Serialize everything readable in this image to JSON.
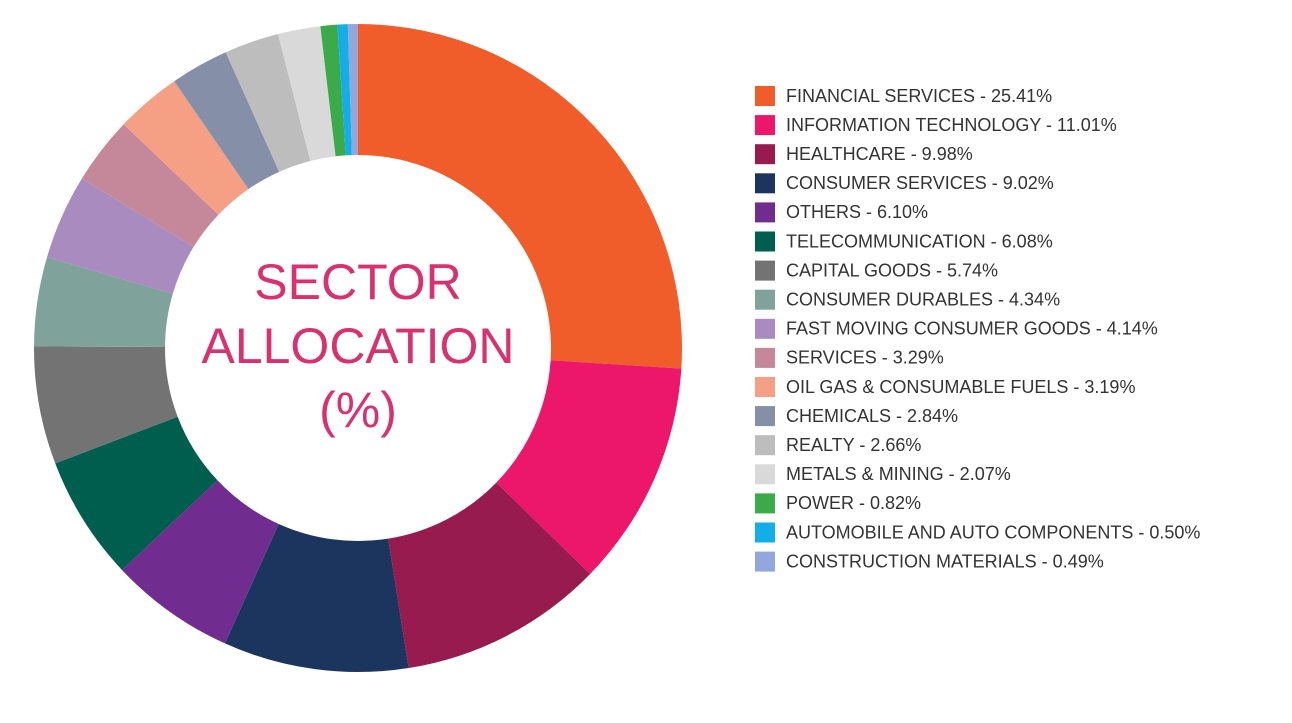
{
  "chart_data": {
    "type": "donut",
    "title": "SECTOR ALLOCATION (%)",
    "categories": [
      "FINANCIAL SERVICES - 25.41%",
      "INFORMATION TECHNOLOGY - 11.01%",
      "HEALTHCARE - 9.98%",
      "CONSUMER SERVICES - 9.02%",
      "OTHERS - 6.10%",
      "TELECOMMUNICATION - 6.08%",
      "CAPITAL GOODS - 5.74%",
      "CONSUMER DURABLES - 4.34%",
      "FAST MOVING CONSUMER GOODS - 4.14%",
      "SERVICES - 3.29%",
      "OIL GAS & CONSUMABLE FUELS - 3.19%",
      "CHEMICALS - 2.84%",
      "REALTY - 2.66%",
      "METALS & MINING - 2.07%",
      "POWER - 0.82%",
      "AUTOMOBILE AND AUTO COMPONENTS - 0.50%",
      "CONSTRUCTION MATERIALS - 0.49%"
    ],
    "values": [
      25.41,
      11.01,
      9.98,
      9.02,
      6.1,
      6.08,
      5.74,
      4.34,
      4.14,
      3.29,
      3.19,
      2.84,
      2.66,
      2.07,
      0.82,
      0.5,
      0.49
    ],
    "colors": [
      "#f15d2a",
      "#ec166b",
      "#981b4f",
      "#1c355e",
      "#702c8f",
      "#005e4e",
      "#737373",
      "#7fa39a",
      "#a98bbf",
      "#c5879a",
      "#f5a085",
      "#8590a8",
      "#bdbdbd",
      "#d9d9d9",
      "#3bab4a",
      "#13aee8",
      "#92a8dc"
    ],
    "legend": "right"
  }
}
